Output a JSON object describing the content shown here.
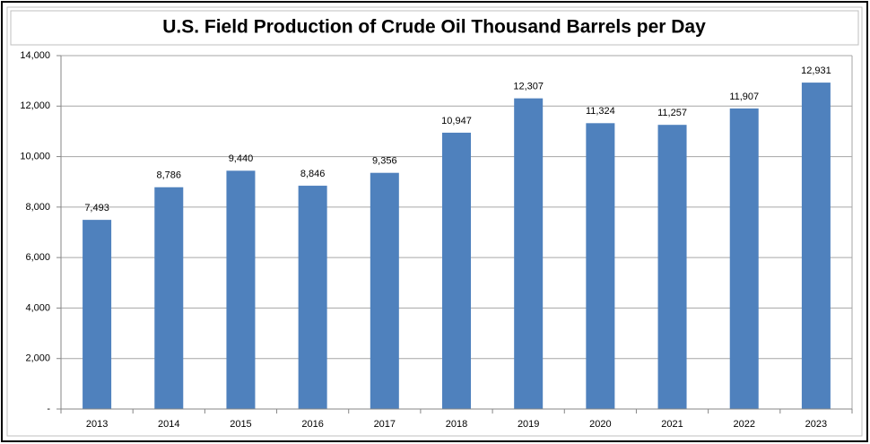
{
  "chart_data": {
    "type": "bar",
    "title": "U.S. Field Production of Crude Oil Thousand Barrels per Day",
    "categories": [
      "2013",
      "2014",
      "2015",
      "2016",
      "2017",
      "2018",
      "2019",
      "2020",
      "2021",
      "2022",
      "2023"
    ],
    "values": [
      7493,
      8786,
      9440,
      8846,
      9356,
      10947,
      12307,
      11324,
      11257,
      11907,
      12931
    ],
    "value_labels": [
      "7,493",
      "8,786",
      "9,440",
      "8,846",
      "9,356",
      "10,947",
      "12,307",
      "11,324",
      "11,257",
      "11,907",
      "12,931"
    ],
    "color": "#4f81bd",
    "ylim": [
      0,
      14000
    ],
    "yticks": [
      {
        "value": 0,
        "label": "-"
      },
      {
        "value": 2000,
        "label": "2,000"
      },
      {
        "value": 4000,
        "label": "4,000"
      },
      {
        "value": 6000,
        "label": "6,000"
      },
      {
        "value": 8000,
        "label": "8,000"
      },
      {
        "value": 10000,
        "label": "10,000"
      },
      {
        "value": 12000,
        "label": "12,000"
      },
      {
        "value": 14000,
        "label": "14,000"
      }
    ],
    "grid": true
  }
}
